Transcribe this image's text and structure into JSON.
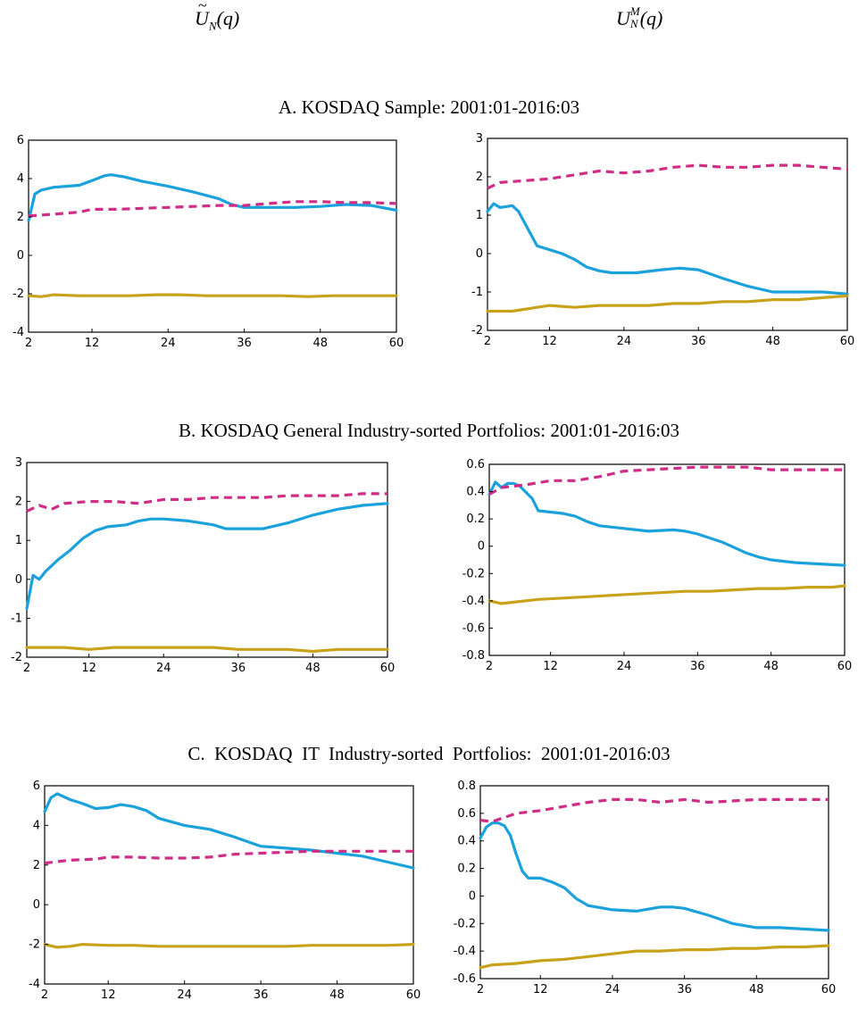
{
  "headers": {
    "left": {
      "base": "U",
      "sub": "N",
      "arg": "(q)",
      "accent": "~"
    },
    "right": {
      "base": "U",
      "sup": "M",
      "sub": "N",
      "arg": "(q)"
    }
  },
  "panels": {
    "a": {
      "title": "A. KOSDAQ Sample: 2001:01-2016:03"
    },
    "b": {
      "title": "B. KOSDAQ General Industry-sorted Portfolios: 2001:01-2016:03"
    },
    "c": {
      "title": "C.  KOSDAQ  IT  Industry-sorted  Portfolios:  2001:01-2016:03"
    }
  },
  "colors": {
    "blue": "#1ba1dc",
    "magenta": "#cf2d86",
    "gold": "#c9a21c"
  },
  "chart_data": [
    {
      "id": "a-left",
      "type": "line",
      "panel": "A",
      "column": "left",
      "xlim": [
        2,
        60
      ],
      "ylim": [
        -4,
        6
      ],
      "xticks": [
        2,
        12,
        24,
        36,
        48,
        60
      ],
      "yticks": [
        -4,
        -2,
        0,
        2,
        4,
        6
      ],
      "series": [
        {
          "name": "blue",
          "color": "#1ba1dc",
          "dash": false,
          "x": [
            2,
            3,
            4,
            6,
            8,
            10,
            12,
            14,
            15,
            17,
            20,
            24,
            28,
            32,
            34,
            36,
            40,
            44,
            48,
            52,
            56,
            60
          ],
          "y": [
            1.8,
            3.2,
            3.4,
            3.55,
            3.6,
            3.65,
            3.9,
            4.15,
            4.2,
            4.1,
            3.85,
            3.6,
            3.3,
            2.95,
            2.65,
            2.5,
            2.5,
            2.5,
            2.55,
            2.65,
            2.6,
            2.35
          ]
        },
        {
          "name": "magenta",
          "color": "#cf2d86",
          "dash": true,
          "x": [
            2,
            6,
            10,
            12,
            16,
            20,
            24,
            28,
            32,
            36,
            40,
            44,
            48,
            52,
            56,
            60
          ],
          "y": [
            2.05,
            2.15,
            2.25,
            2.4,
            2.4,
            2.45,
            2.5,
            2.55,
            2.6,
            2.6,
            2.7,
            2.8,
            2.8,
            2.75,
            2.75,
            2.7
          ]
        },
        {
          "name": "gold",
          "color": "#c9a21c",
          "dash": false,
          "x": [
            2,
            4,
            6,
            10,
            14,
            18,
            22,
            26,
            30,
            34,
            38,
            42,
            46,
            50,
            54,
            58,
            60
          ],
          "y": [
            -2.1,
            -2.15,
            -2.05,
            -2.1,
            -2.1,
            -2.1,
            -2.05,
            -2.05,
            -2.1,
            -2.1,
            -2.1,
            -2.1,
            -2.15,
            -2.1,
            -2.1,
            -2.1,
            -2.1
          ]
        }
      ]
    },
    {
      "id": "a-right",
      "type": "line",
      "panel": "A",
      "column": "right",
      "xlim": [
        2,
        60
      ],
      "ylim": [
        -2,
        3
      ],
      "xticks": [
        2,
        12,
        24,
        36,
        48,
        60
      ],
      "yticks": [
        -2,
        -1,
        0,
        1,
        2,
        3
      ],
      "series": [
        {
          "name": "blue",
          "color": "#1ba1dc",
          "dash": false,
          "x": [
            2,
            3,
            4,
            6,
            7,
            9,
            10,
            12,
            14,
            16,
            18,
            20,
            22,
            26,
            30,
            33,
            36,
            40,
            44,
            48,
            52,
            56,
            60
          ],
          "y": [
            1.1,
            1.3,
            1.2,
            1.25,
            1.1,
            0.5,
            0.2,
            0.1,
            0.0,
            -0.15,
            -0.35,
            -0.45,
            -0.5,
            -0.5,
            -0.42,
            -0.38,
            -0.42,
            -0.65,
            -0.85,
            -1.0,
            -1.0,
            -1.0,
            -1.05
          ]
        },
        {
          "name": "magenta",
          "color": "#cf2d86",
          "dash": true,
          "x": [
            2,
            4,
            8,
            12,
            16,
            20,
            24,
            28,
            32,
            36,
            40,
            44,
            48,
            52,
            56,
            60
          ],
          "y": [
            1.7,
            1.85,
            1.9,
            1.95,
            2.05,
            2.15,
            2.1,
            2.15,
            2.25,
            2.3,
            2.25,
            2.25,
            2.3,
            2.3,
            2.25,
            2.2
          ]
        },
        {
          "name": "gold",
          "color": "#c9a21c",
          "dash": false,
          "x": [
            2,
            6,
            10,
            12,
            16,
            20,
            24,
            28,
            32,
            36,
            40,
            44,
            48,
            52,
            56,
            60
          ],
          "y": [
            -1.5,
            -1.5,
            -1.4,
            -1.35,
            -1.4,
            -1.35,
            -1.35,
            -1.35,
            -1.3,
            -1.3,
            -1.25,
            -1.25,
            -1.2,
            -1.2,
            -1.15,
            -1.1
          ]
        }
      ]
    },
    {
      "id": "b-left",
      "type": "line",
      "panel": "B",
      "column": "left",
      "xlim": [
        2,
        60
      ],
      "ylim": [
        -2,
        3
      ],
      "xticks": [
        2,
        12,
        24,
        36,
        48,
        60
      ],
      "yticks": [
        -2,
        -1,
        0,
        1,
        2,
        3
      ],
      "series": [
        {
          "name": "blue",
          "color": "#1ba1dc",
          "dash": false,
          "x": [
            2,
            3,
            4,
            5,
            7,
            9,
            11,
            13,
            15,
            18,
            20,
            22,
            24,
            28,
            32,
            34,
            36,
            40,
            44,
            48,
            52,
            56,
            60
          ],
          "y": [
            -0.75,
            0.1,
            0.0,
            0.2,
            0.5,
            0.75,
            1.05,
            1.25,
            1.35,
            1.4,
            1.5,
            1.55,
            1.55,
            1.5,
            1.4,
            1.3,
            1.3,
            1.3,
            1.45,
            1.65,
            1.8,
            1.9,
            1.95
          ]
        },
        {
          "name": "magenta",
          "color": "#cf2d86",
          "dash": true,
          "x": [
            2,
            4,
            6,
            8,
            12,
            16,
            20,
            24,
            28,
            32,
            36,
            40,
            44,
            48,
            52,
            56,
            60
          ],
          "y": [
            1.75,
            1.9,
            1.8,
            1.95,
            2.0,
            2.0,
            1.95,
            2.05,
            2.05,
            2.1,
            2.1,
            2.1,
            2.15,
            2.15,
            2.15,
            2.2,
            2.2
          ]
        },
        {
          "name": "gold",
          "color": "#c9a21c",
          "dash": false,
          "x": [
            2,
            4,
            8,
            12,
            16,
            20,
            24,
            28,
            32,
            36,
            40,
            44,
            48,
            52,
            56,
            60
          ],
          "y": [
            -1.75,
            -1.75,
            -1.75,
            -1.8,
            -1.75,
            -1.75,
            -1.75,
            -1.75,
            -1.75,
            -1.8,
            -1.8,
            -1.8,
            -1.85,
            -1.8,
            -1.8,
            -1.8
          ]
        }
      ]
    },
    {
      "id": "b-right",
      "type": "line",
      "panel": "B",
      "column": "right",
      "xlim": [
        2,
        60
      ],
      "ylim": [
        -0.8,
        0.6
      ],
      "xticks": [
        2,
        12,
        24,
        36,
        48,
        60
      ],
      "yticks": [
        -0.8,
        -0.6,
        -0.4,
        -0.2,
        0,
        0.2,
        0.4,
        0.6
      ],
      "series": [
        {
          "name": "blue",
          "color": "#1ba1dc",
          "dash": false,
          "x": [
            2,
            3,
            4,
            5,
            6,
            7,
            9,
            10,
            12,
            14,
            16,
            18,
            20,
            24,
            28,
            32,
            34,
            36,
            40,
            44,
            46,
            48,
            52,
            56,
            60
          ],
          "y": [
            0.38,
            0.47,
            0.43,
            0.46,
            0.46,
            0.44,
            0.35,
            0.26,
            0.25,
            0.24,
            0.22,
            0.18,
            0.15,
            0.13,
            0.11,
            0.12,
            0.11,
            0.09,
            0.03,
            -0.05,
            -0.08,
            -0.1,
            -0.12,
            -0.13,
            -0.14
          ]
        },
        {
          "name": "magenta",
          "color": "#cf2d86",
          "dash": true,
          "x": [
            2,
            4,
            8,
            12,
            16,
            20,
            24,
            28,
            32,
            36,
            40,
            44,
            48,
            52,
            56,
            60
          ],
          "y": [
            0.38,
            0.43,
            0.45,
            0.48,
            0.48,
            0.51,
            0.55,
            0.56,
            0.57,
            0.58,
            0.58,
            0.58,
            0.56,
            0.56,
            0.56,
            0.56
          ]
        },
        {
          "name": "gold",
          "color": "#c9a21c",
          "dash": false,
          "x": [
            2,
            4,
            6,
            10,
            14,
            18,
            22,
            26,
            30,
            34,
            38,
            42,
            46,
            50,
            54,
            58,
            60
          ],
          "y": [
            -0.4,
            -0.42,
            -0.41,
            -0.39,
            -0.38,
            -0.37,
            -0.36,
            -0.35,
            -0.34,
            -0.33,
            -0.33,
            -0.32,
            -0.31,
            -0.31,
            -0.3,
            -0.3,
            -0.29
          ]
        }
      ]
    },
    {
      "id": "c-left",
      "type": "line",
      "panel": "C",
      "column": "left",
      "xlim": [
        2,
        60
      ],
      "ylim": [
        -4,
        6
      ],
      "xticks": [
        2,
        12,
        24,
        36,
        48,
        60
      ],
      "yticks": [
        -4,
        -2,
        0,
        2,
        4,
        6
      ],
      "series": [
        {
          "name": "blue",
          "color": "#1ba1dc",
          "dash": false,
          "x": [
            2,
            3,
            4,
            6,
            8,
            10,
            12,
            14,
            16,
            18,
            20,
            24,
            28,
            32,
            36,
            40,
            44,
            48,
            52,
            56,
            60
          ],
          "y": [
            4.7,
            5.4,
            5.6,
            5.3,
            5.1,
            4.85,
            4.9,
            5.05,
            4.95,
            4.75,
            4.35,
            4.0,
            3.8,
            3.4,
            2.95,
            2.85,
            2.75,
            2.6,
            2.45,
            2.15,
            1.85
          ]
        },
        {
          "name": "magenta",
          "color": "#cf2d86",
          "dash": true,
          "x": [
            2,
            6,
            10,
            12,
            16,
            20,
            24,
            28,
            32,
            36,
            40,
            44,
            48,
            52,
            56,
            60
          ],
          "y": [
            2.1,
            2.25,
            2.3,
            2.4,
            2.4,
            2.35,
            2.35,
            2.4,
            2.55,
            2.6,
            2.65,
            2.7,
            2.7,
            2.7,
            2.7,
            2.7
          ]
        },
        {
          "name": "gold",
          "color": "#c9a21c",
          "dash": false,
          "x": [
            2,
            4,
            6,
            8,
            12,
            16,
            20,
            24,
            28,
            32,
            36,
            40,
            44,
            48,
            52,
            56,
            60
          ],
          "y": [
            -2.0,
            -2.15,
            -2.1,
            -2.0,
            -2.05,
            -2.05,
            -2.1,
            -2.1,
            -2.1,
            -2.1,
            -2.1,
            -2.1,
            -2.05,
            -2.05,
            -2.05,
            -2.05,
            -2.0
          ]
        }
      ]
    },
    {
      "id": "c-right",
      "type": "line",
      "panel": "C",
      "column": "right",
      "xlim": [
        2,
        60
      ],
      "ylim": [
        -0.6,
        0.8
      ],
      "xticks": [
        2,
        12,
        24,
        36,
        48,
        60
      ],
      "yticks": [
        -0.6,
        -0.4,
        -0.2,
        0,
        0.2,
        0.4,
        0.6,
        0.8
      ],
      "series": [
        {
          "name": "blue",
          "color": "#1ba1dc",
          "dash": false,
          "x": [
            2,
            3,
            4,
            5,
            6,
            7,
            8,
            9,
            10,
            12,
            14,
            16,
            18,
            20,
            24,
            28,
            32,
            34,
            36,
            40,
            44,
            48,
            52,
            56,
            60
          ],
          "y": [
            0.42,
            0.5,
            0.53,
            0.53,
            0.51,
            0.44,
            0.3,
            0.18,
            0.13,
            0.13,
            0.1,
            0.06,
            -0.02,
            -0.07,
            -0.1,
            -0.11,
            -0.08,
            -0.08,
            -0.09,
            -0.14,
            -0.2,
            -0.23,
            -0.23,
            -0.24,
            -0.25
          ]
        },
        {
          "name": "magenta",
          "color": "#cf2d86",
          "dash": true,
          "x": [
            2,
            4,
            8,
            12,
            16,
            20,
            24,
            28,
            32,
            36,
            40,
            44,
            48,
            52,
            56,
            60
          ],
          "y": [
            0.55,
            0.54,
            0.6,
            0.62,
            0.65,
            0.68,
            0.7,
            0.7,
            0.68,
            0.7,
            0.68,
            0.69,
            0.7,
            0.7,
            0.7,
            0.7
          ]
        },
        {
          "name": "gold",
          "color": "#c9a21c",
          "dash": false,
          "x": [
            2,
            4,
            8,
            12,
            16,
            20,
            24,
            28,
            32,
            36,
            40,
            44,
            48,
            52,
            56,
            60
          ],
          "y": [
            -0.52,
            -0.5,
            -0.49,
            -0.47,
            -0.46,
            -0.44,
            -0.42,
            -0.4,
            -0.4,
            -0.39,
            -0.39,
            -0.38,
            -0.38,
            -0.37,
            -0.37,
            -0.36
          ]
        }
      ]
    }
  ]
}
